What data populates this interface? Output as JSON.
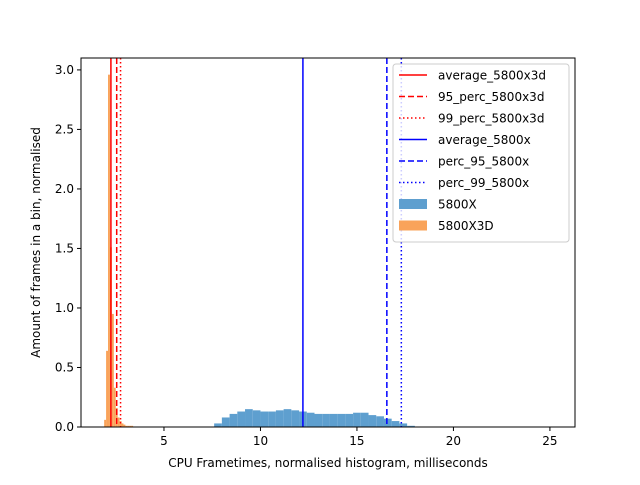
{
  "chart_data": {
    "type": "histogram",
    "xlabel": "CPU Frametimes, normalised histogram, milliseconds",
    "ylabel": "Amount of frames in a bin, normalised",
    "xlim": [
      0.7,
      26.3
    ],
    "ylim": [
      0,
      3.1
    ],
    "xticks": [
      5,
      10,
      15,
      20,
      25
    ],
    "yticks": [
      0.0,
      0.5,
      1.0,
      1.5,
      2.0,
      2.5,
      3.0
    ],
    "grid": false,
    "legend_position": "top-right",
    "series": [
      {
        "name": "5800X",
        "color": "#5e9fcf",
        "bin_width": 0.4,
        "x": [
          7.6,
          8.0,
          8.4,
          8.8,
          9.2,
          9.6,
          10.0,
          10.4,
          10.8,
          11.2,
          11.6,
          12.0,
          12.4,
          12.8,
          13.2,
          13.6,
          14.0,
          14.4,
          14.8,
          15.2,
          15.6,
          16.0,
          16.4,
          16.8,
          17.2,
          17.6
        ],
        "values": [
          0.03,
          0.08,
          0.11,
          0.13,
          0.15,
          0.14,
          0.13,
          0.13,
          0.14,
          0.15,
          0.14,
          0.13,
          0.12,
          0.11,
          0.11,
          0.11,
          0.11,
          0.11,
          0.12,
          0.12,
          0.1,
          0.09,
          0.07,
          0.05,
          0.03,
          0.01
        ]
      },
      {
        "name": "5800X3D",
        "color": "#f9a35a",
        "bin_width": 0.1,
        "x": [
          1.9,
          2.0,
          2.1,
          2.2,
          2.3,
          2.4,
          2.5,
          2.6,
          2.7,
          2.8,
          2.9,
          3.0,
          3.1,
          3.2,
          3.3
        ],
        "values": [
          0.06,
          0.64,
          2.96,
          1.51,
          0.95,
          0.33,
          0.16,
          0.08,
          0.05,
          0.03,
          0.02,
          0.01,
          0.01,
          0.01,
          0.01
        ]
      }
    ],
    "reference_lines": [
      {
        "name": "average_5800x3d",
        "x": 2.25,
        "color": "#ff0000",
        "style": "solid"
      },
      {
        "name": "95_perc_5800x3d",
        "x": 2.55,
        "color": "#ff0000",
        "style": "dashed"
      },
      {
        "name": "99_perc_5800x3d",
        "x": 2.75,
        "color": "#ff0000",
        "style": "dotted"
      },
      {
        "name": "average_5800x",
        "x": 12.2,
        "color": "#0000ff",
        "style": "solid"
      },
      {
        "name": "perc_95_5800x",
        "x": 16.55,
        "color": "#0000ff",
        "style": "dashed"
      },
      {
        "name": "perc_99_5800x",
        "x": 17.3,
        "color": "#0000ff",
        "style": "dotted"
      }
    ],
    "legend": [
      {
        "label": "average_5800x3d",
        "kind": "line",
        "color": "#ff0000",
        "style": "solid"
      },
      {
        "label": "95_perc_5800x3d",
        "kind": "line",
        "color": "#ff0000",
        "style": "dashed"
      },
      {
        "label": "99_perc_5800x3d",
        "kind": "line",
        "color": "#ff0000",
        "style": "dotted"
      },
      {
        "label": "average_5800x",
        "kind": "line",
        "color": "#0000ff",
        "style": "solid"
      },
      {
        "label": "perc_95_5800x",
        "kind": "line",
        "color": "#0000ff",
        "style": "dashed"
      },
      {
        "label": "perc_99_5800x",
        "kind": "line",
        "color": "#0000ff",
        "style": "dotted"
      },
      {
        "label": "5800X",
        "kind": "patch",
        "color": "#5e9fcf"
      },
      {
        "label": "5800X3D",
        "kind": "patch",
        "color": "#f9a35a"
      }
    ]
  }
}
